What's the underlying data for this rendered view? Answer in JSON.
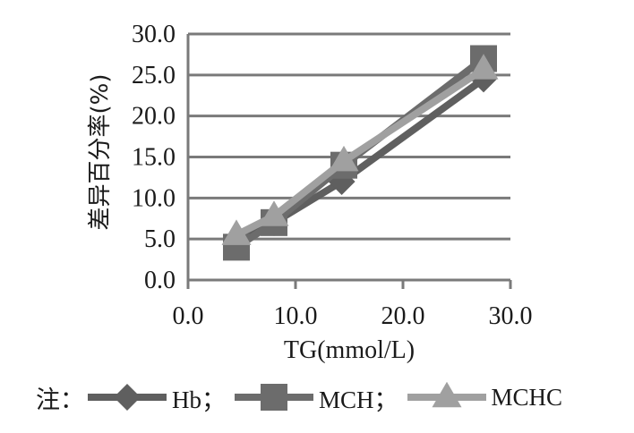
{
  "chart_data": {
    "type": "line",
    "xlabel": "TG(mmol/L)",
    "ylabel": "差异百分率(%)",
    "xlim": [
      0,
      30
    ],
    "ylim": [
      0,
      30
    ],
    "xticks": [
      "0.0",
      "10.0",
      "20.0",
      "30.0"
    ],
    "yticks": [
      "0.0",
      "5.0",
      "10.0",
      "15.0",
      "20.0",
      "25.0",
      "30.0"
    ],
    "grid": "horizontal",
    "legend_position": "bottom",
    "legend_prefix": "注：",
    "series": [
      {
        "name": "Hb",
        "label": "Hb；",
        "marker": "diamond",
        "color": "#5f5f5f",
        "points": [
          [
            4.5,
            4.5
          ],
          [
            8.0,
            7.0
          ],
          [
            14.3,
            12.0
          ],
          [
            27.5,
            24.5
          ]
        ]
      },
      {
        "name": "MCH",
        "label": "MCH；",
        "marker": "square",
        "color": "#6c6c6c",
        "points": [
          [
            4.5,
            4.0
          ],
          [
            8.0,
            7.0
          ],
          [
            14.5,
            14.0
          ],
          [
            27.5,
            27.0
          ]
        ]
      },
      {
        "name": "MCHC",
        "label": "MCHC",
        "marker": "triangle",
        "color": "#a0a0a0",
        "points": [
          [
            4.5,
            5.5
          ],
          [
            8.0,
            7.8
          ],
          [
            14.5,
            14.5
          ],
          [
            27.5,
            25.7
          ]
        ]
      }
    ]
  }
}
